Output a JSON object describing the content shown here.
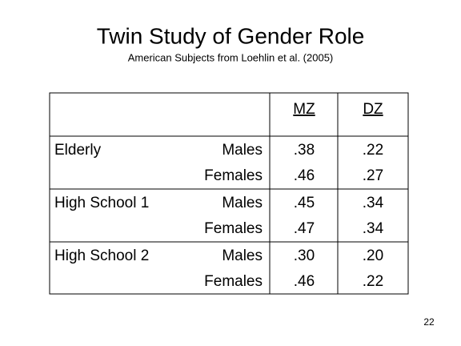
{
  "header": {
    "title": "Twin Study of Gender Role",
    "subtitle": "American Subjects from Loehlin et al. (2005)"
  },
  "table": {
    "columns": [
      "MZ",
      "DZ"
    ],
    "groups": [
      {
        "label": "Elderly",
        "rows": [
          [
            "Males",
            ".38",
            ".22"
          ],
          [
            "Females",
            ".46",
            ".27"
          ]
        ]
      },
      {
        "label": "High School 1",
        "rows": [
          [
            "Males",
            ".45",
            ".34"
          ],
          [
            "Females",
            ".47",
            ".34"
          ]
        ]
      },
      {
        "label": "High School 2",
        "rows": [
          [
            "Males",
            ".30",
            ".20"
          ],
          [
            "Females",
            ".46",
            ".22"
          ]
        ]
      }
    ]
  },
  "page_number": "22"
}
